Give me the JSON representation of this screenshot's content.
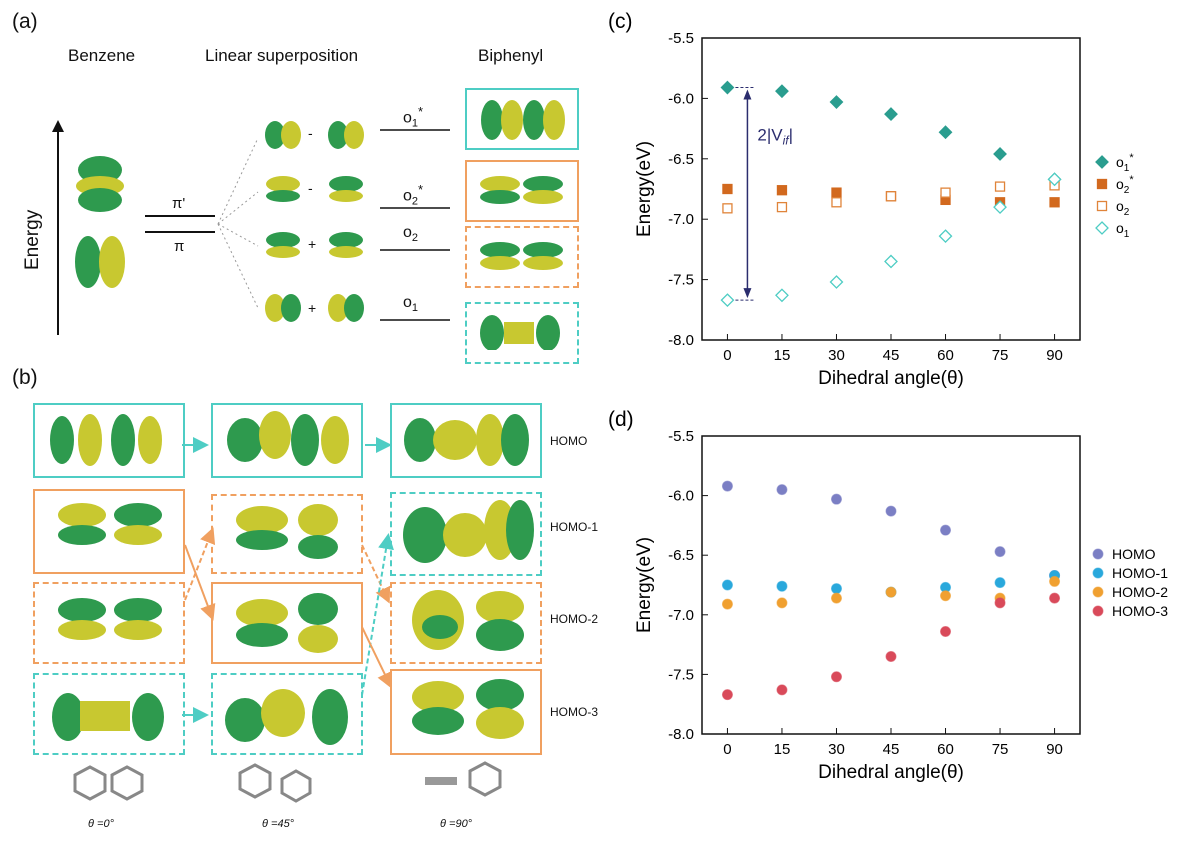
{
  "panel_a": {
    "label": "(a)",
    "col_benzene": "Benzene",
    "col_linear": "Linear superposition",
    "col_biphenyl": "Biphenyl",
    "energy_axis": "Energy",
    "levels": {
      "pi_prime": "π'",
      "pi": "π"
    },
    "ops": [
      "-",
      "-",
      "+",
      "+"
    ],
    "orbitals": [
      {
        "base": "o",
        "sub": "1",
        "sup": "*"
      },
      {
        "base": "o",
        "sub": "2",
        "sup": "*"
      },
      {
        "base": "o",
        "sub": "2",
        "sup": ""
      },
      {
        "base": "o",
        "sub": "1",
        "sup": ""
      }
    ]
  },
  "panel_b": {
    "label": "(b)",
    "row_labels": [
      "HOMO",
      "HOMO-1",
      "HOMO-2",
      "HOMO-3"
    ],
    "angles": [
      "θ =0°",
      "θ =45°",
      "θ =90°"
    ]
  },
  "colors": {
    "teal": "#4ecdc4",
    "orange": "#f0a060",
    "lobe_green": "#2e9a4e",
    "lobe_yellow": "#c8c830",
    "annot": "#2b2d6e"
  },
  "chart_data": [
    {
      "panel": "(c)",
      "type": "scatter",
      "xlabel": "Dihedral angle(θ)",
      "ylabel": "Energy(eV)",
      "x": [
        0,
        15,
        30,
        45,
        60,
        75,
        90
      ],
      "xlim": [
        -7,
        97
      ],
      "ylim": [
        -8.0,
        -5.5
      ],
      "yticks": [
        "-5.5",
        "-6.0",
        "-6.5",
        "-7.0",
        "-7.5",
        "-8.0"
      ],
      "yticks_values": [
        -5.5,
        -6.0,
        -6.5,
        -7.0,
        -7.5,
        -8.0
      ],
      "xticks": [
        "0",
        "15",
        "30",
        "45",
        "60",
        "75",
        "90"
      ],
      "annotation": "2|V",
      "annotation_sub": "if",
      "annotation_end": "|",
      "legend_position": "right",
      "series": [
        {
          "name": "o1*",
          "label_base": "o",
          "label_sub": "1",
          "label_sup": "*",
          "marker": "diamond",
          "fill": true,
          "color": "#2a9d8f",
          "values": [
            -5.91,
            -5.94,
            -6.03,
            -6.13,
            -6.28,
            -6.46,
            -6.67
          ]
        },
        {
          "name": "o2*",
          "label_base": "o",
          "label_sub": "2",
          "label_sup": "*",
          "marker": "square",
          "fill": true,
          "color": "#d2691e",
          "values": [
            -6.75,
            -6.76,
            -6.78,
            -6.81,
            -6.84,
            -6.86,
            -6.86
          ]
        },
        {
          "name": "o2",
          "label_base": "o",
          "label_sub": "2",
          "label_sup": "",
          "marker": "square",
          "fill": false,
          "color": "#e0843a",
          "values": [
            -6.91,
            -6.9,
            -6.86,
            -6.81,
            -6.78,
            -6.73,
            -6.72
          ]
        },
        {
          "name": "o1",
          "label_base": "o",
          "label_sub": "1",
          "label_sup": "",
          "marker": "diamond",
          "fill": false,
          "color": "#4ecdc4",
          "values": [
            -7.67,
            -7.63,
            -7.52,
            -7.35,
            -7.14,
            -6.9,
            -6.67
          ]
        }
      ]
    },
    {
      "panel": "(d)",
      "type": "scatter",
      "xlabel": "Dihedral angle(θ)",
      "ylabel": "Energy(eV)",
      "x": [
        0,
        15,
        30,
        45,
        60,
        75,
        90
      ],
      "xlim": [
        -7,
        97
      ],
      "ylim": [
        -8.0,
        -5.5
      ],
      "yticks": [
        "-5.5",
        "-6.0",
        "-6.5",
        "-7.0",
        "-7.5",
        "-8.0"
      ],
      "yticks_values": [
        -5.5,
        -6.0,
        -6.5,
        -7.0,
        -7.5,
        -8.0
      ],
      "xticks": [
        "0",
        "15",
        "30",
        "45",
        "60",
        "75",
        "90"
      ],
      "legend_position": "right",
      "series": [
        {
          "name": "HOMO",
          "marker": "circle",
          "color": "#7b7fc4",
          "values": [
            -5.92,
            -5.95,
            -6.03,
            -6.13,
            -6.29,
            -6.47,
            -6.67
          ]
        },
        {
          "name": "HOMO-1",
          "marker": "circle",
          "color": "#29a8dc",
          "values": [
            -6.75,
            -6.76,
            -6.78,
            -6.81,
            -6.77,
            -6.73,
            -6.67
          ]
        },
        {
          "name": "HOMO-2",
          "marker": "circle",
          "color": "#f0a030",
          "values": [
            -6.91,
            -6.9,
            -6.86,
            -6.81,
            -6.84,
            -6.86,
            -6.72
          ]
        },
        {
          "name": "HOMO-3",
          "marker": "circle",
          "color": "#d94a5a",
          "values": [
            -7.67,
            -7.63,
            -7.52,
            -7.35,
            -7.14,
            -6.9,
            -6.86
          ]
        }
      ]
    }
  ]
}
